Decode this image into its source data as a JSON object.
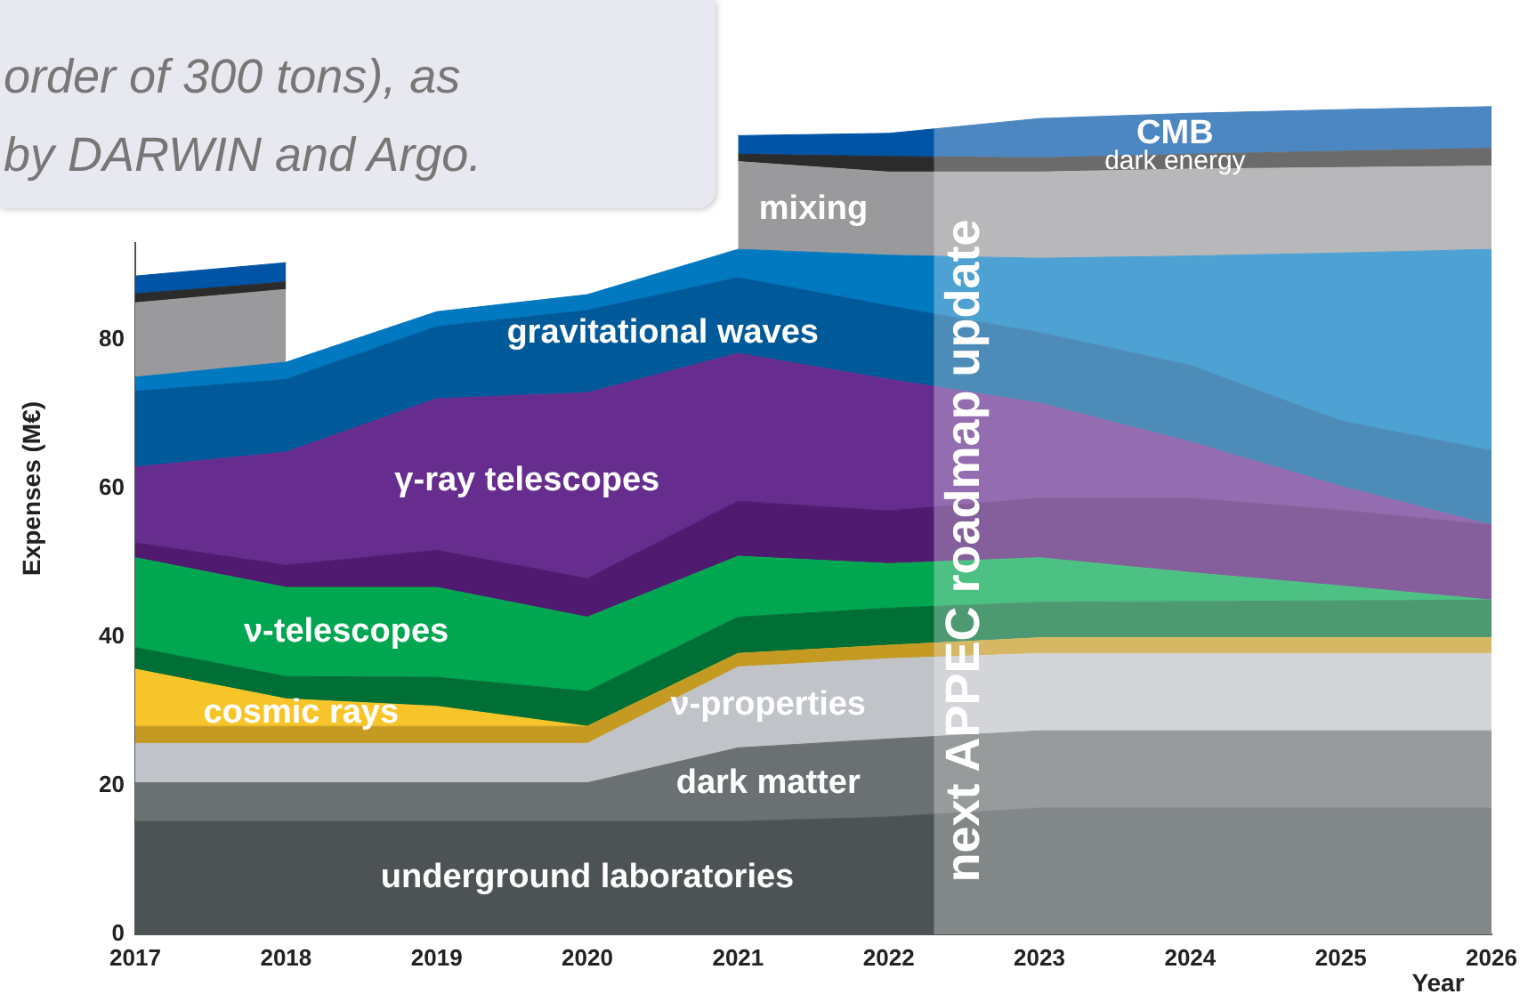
{
  "chart_data": {
    "type": "area",
    "stacked": true,
    "ylabel": "Expenses (M€)",
    "xlabel": "Year",
    "x": [
      2017,
      2018,
      2019,
      2020,
      2021,
      2022,
      2023,
      2024,
      2025,
      2026
    ],
    "xlim": [
      2017,
      2026
    ],
    "xticks": [
      2017,
      2018,
      2019,
      2020,
      2021,
      2022,
      2023,
      2024,
      2025,
      2026
    ],
    "ylim": [
      0,
      120
    ],
    "yticks": [
      0,
      20,
      40,
      60,
      80
    ],
    "grid": false,
    "legend": false,
    "series": [
      {
        "name": "underground laboratories",
        "color": "#4d5354",
        "values": [
          15.2,
          15.2,
          15.2,
          15.2,
          15.2,
          15.8,
          17,
          17,
          17,
          17
        ]
      },
      {
        "name": "dark matter",
        "color": "#6b7072",
        "values": [
          5.2,
          5.2,
          5.2,
          5.2,
          9.9,
          10.5,
          10.4,
          10.4,
          10.4,
          10.4
        ]
      },
      {
        "name": "ν-properties",
        "color": "#c0c3c8",
        "values": [
          5.3,
          5.3,
          5.3,
          5.3,
          10.9,
          10.8,
          10.4,
          10.4,
          10.4,
          10.4
        ]
      },
      {
        "color": "#c49a22",
        "values": [
          2.3,
          2.3,
          2.3,
          2.3,
          1.8,
          1.8,
          2.1,
          2.1,
          2.1,
          2.1
        ]
      },
      {
        "name": "cosmic rays",
        "color": "#f7c52a",
        "values": [
          7.7,
          3.7,
          2.7,
          0,
          0,
          0,
          0,
          0,
          0,
          0
        ]
      },
      {
        "color": "#006f35",
        "values": [
          2.9,
          3.0,
          3.9,
          4.7,
          4.9,
          5.0,
          4.8,
          4.9,
          5.0,
          5.1
        ]
      },
      {
        "name": "ν-telescopes",
        "color": "#00a650",
        "values": [
          12.1,
          12.0,
          12.1,
          10.0,
          8.2,
          6.0,
          6.0,
          3.9,
          2.0,
          0
        ]
      },
      {
        "color": "#4f1a70",
        "values": [
          2.0,
          3.0,
          5.0,
          5.2,
          7.4,
          7.1,
          8.0,
          10.0,
          10.2,
          10.1
        ]
      },
      {
        "name": "γ-ray telescopes",
        "color": "#662d8f",
        "values": [
          10.2,
          15.2,
          20.4,
          25.0,
          19.9,
          17.7,
          12.8,
          7.6,
          3.2,
          0
        ]
      },
      {
        "name": "gravitational waves",
        "color": "#005a9a",
        "values": [
          10.2,
          9.8,
          9.7,
          11.1,
          10.2,
          9.9,
          9.5,
          10.3,
          8.8,
          10.0
        ]
      },
      {
        "color": "#0079c1",
        "values": [
          1.9,
          2.3,
          2.0,
          2.1,
          3.8,
          6.8,
          10.0,
          14.7,
          22.6,
          27.1
        ]
      },
      {
        "name": "mixing",
        "color": "#9a9a9c",
        "values": [
          10.0,
          9.8,
          null,
          null,
          11.8,
          11.2,
          11.6,
          11.7,
          11.5,
          11.2
        ]
      },
      {
        "name": "dark energy",
        "color": "#2b2b2b",
        "values": [
          1.2,
          1.0,
          null,
          null,
          1.0,
          2.1,
          1.9,
          2.0,
          2.2,
          2.4
        ]
      },
      {
        "name": "CMB",
        "color": "#0054a6",
        "values": [
          2.4,
          2.6,
          null,
          null,
          2.5,
          3.1,
          5.3,
          5.5,
          5.6,
          5.6
        ]
      }
    ],
    "bands": [
      {
        "axis": "x",
        "from": 2022.3,
        "to": 2026,
        "label": "next APPEC roadmap update"
      }
    ],
    "annotations": [
      "order of 300 tons), as",
      "by DARWIN and Argo."
    ]
  }
}
